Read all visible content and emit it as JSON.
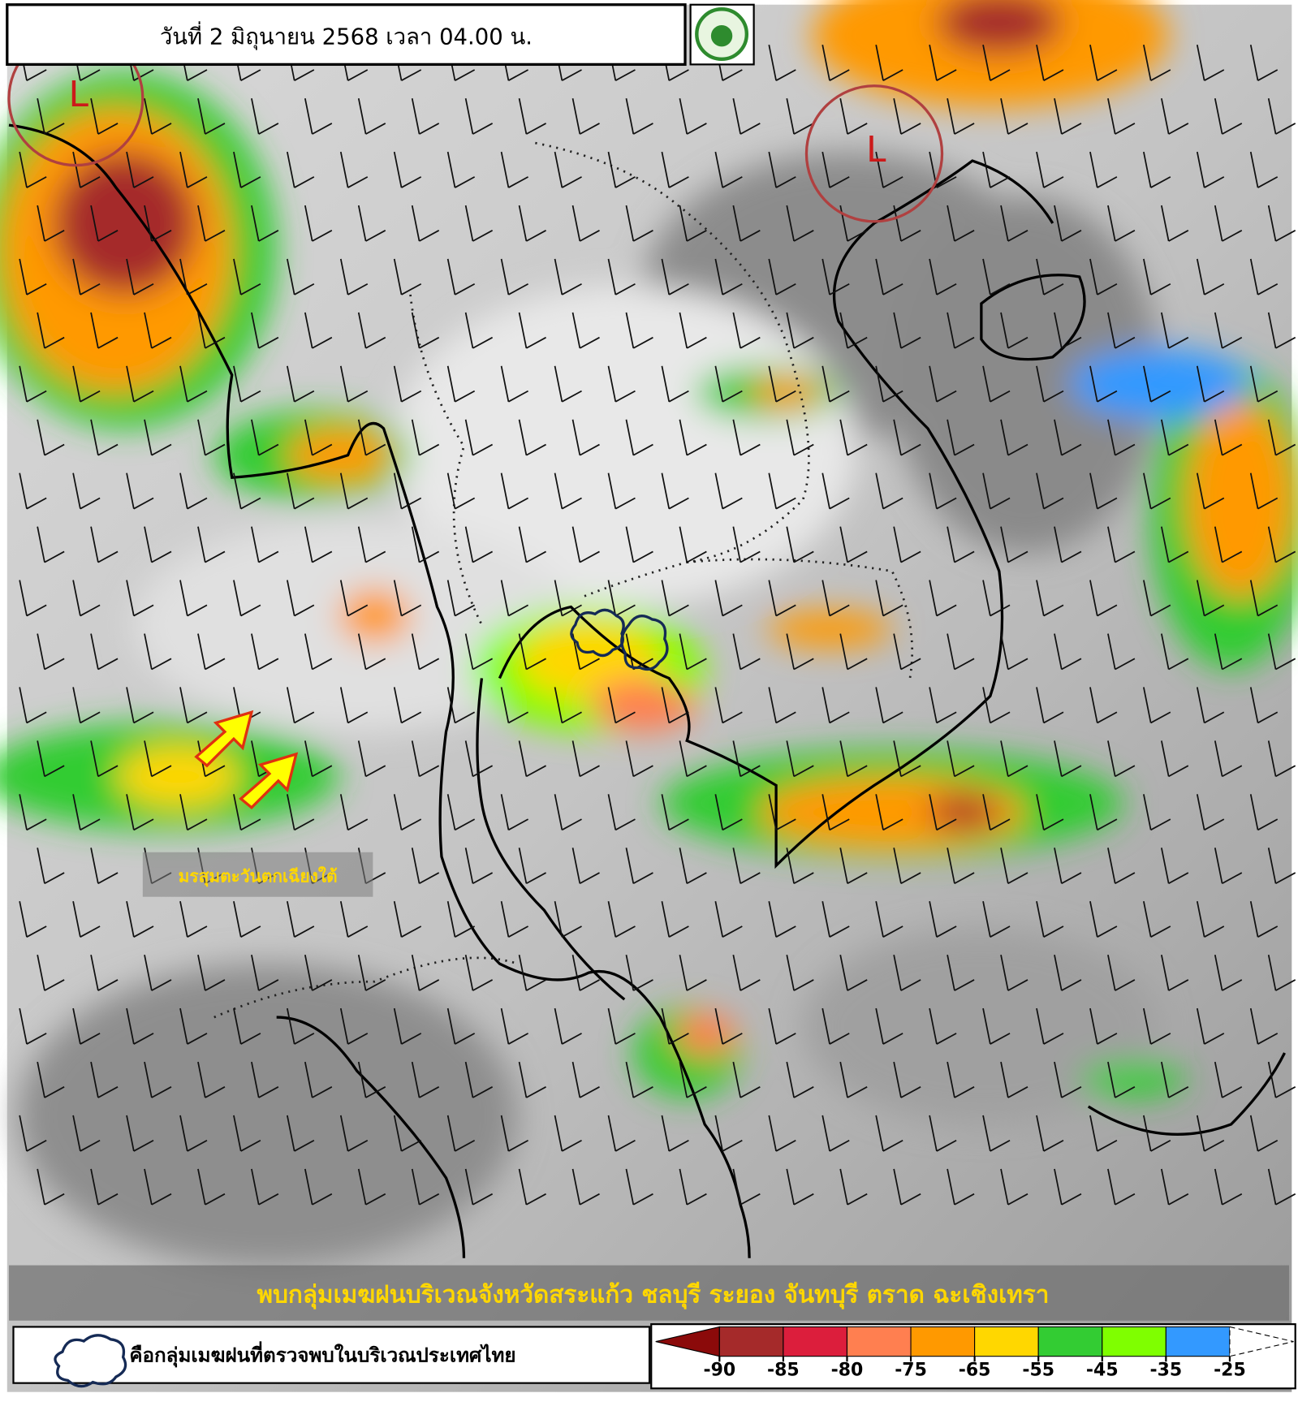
{
  "header": {
    "title": "วันที่ 2 มิถุนายน 2568 เวลา 04.00 น."
  },
  "annotations": {
    "low_north_west": "L",
    "low_north_east": "L",
    "monsoon": "มรสุมตะวันตกเฉียงใต้"
  },
  "footer": {
    "caption": "พบกลุ่มเมฆฝนบริเวณจังหวัดสระแก้ว ชลบุรี ระยอง จันทบุรี ตราด ฉะเชิงเทรา"
  },
  "legend": {
    "cloud_label": "คือกลุ่มเมฆฝนที่ตรวจพบในบริเวณประเทศไทย",
    "colors": [
      "#8b0a0a",
      "#a52a2a",
      "#dc1e3c",
      "#ff7f50",
      "#ff9900",
      "#ffd700",
      "#33cc33",
      "#7fff00",
      "#3399ff",
      "#ffffff"
    ],
    "ticks": [
      -90,
      -85,
      -80,
      -75,
      -65,
      -55,
      -45,
      -35,
      -25
    ]
  }
}
